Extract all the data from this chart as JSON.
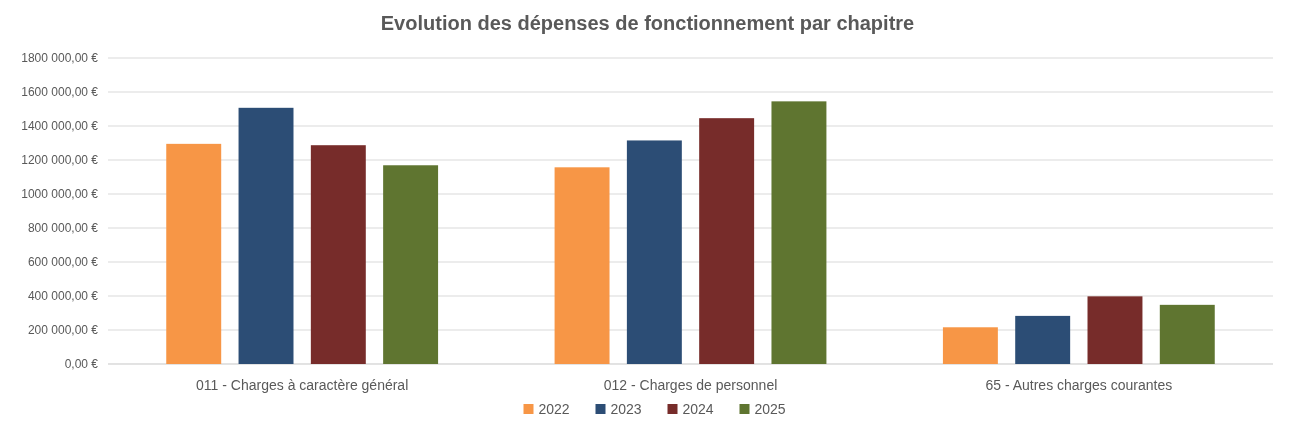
{
  "chart_data": {
    "type": "bar",
    "title": "Evolution des dépenses de fonctionnement par chapitre",
    "categories": [
      "011 - Charges à caractère général",
      "012 - Charges de personnel",
      "65 - Autres charges courantes"
    ],
    "series": [
      {
        "name": "2022",
        "color": "#f79646",
        "values": [
          1295000,
          1157000,
          216000
        ]
      },
      {
        "name": "2023",
        "color": "#2c4d75",
        "values": [
          1507000,
          1315000,
          283000
        ]
      },
      {
        "name": "2024",
        "color": "#772c2a",
        "values": [
          1287000,
          1446000,
          398000
        ]
      },
      {
        "name": "2025",
        "color": "#5f7530",
        "values": [
          1169000,
          1545000,
          348000
        ]
      }
    ],
    "ylim": [
      0,
      1800000
    ],
    "yticks": [
      {
        "value": 0,
        "label": "0,00 €"
      },
      {
        "value": 200000,
        "label": "200 000,00 €"
      },
      {
        "value": 400000,
        "label": "400 000,00 €"
      },
      {
        "value": 600000,
        "label": "600 000,00 €"
      },
      {
        "value": 800000,
        "label": "800 000,00 €"
      },
      {
        "value": 1000000,
        "label": "1000 000,00 €"
      },
      {
        "value": 1200000,
        "label": "1200 000,00 €"
      },
      {
        "value": 1400000,
        "label": "1400 000,00 €"
      },
      {
        "value": 1600000,
        "label": "1600 000,00 €"
      },
      {
        "value": 1800000,
        "label": "1800 000,00 €"
      }
    ],
    "grid": "y",
    "legend": "bottom"
  }
}
